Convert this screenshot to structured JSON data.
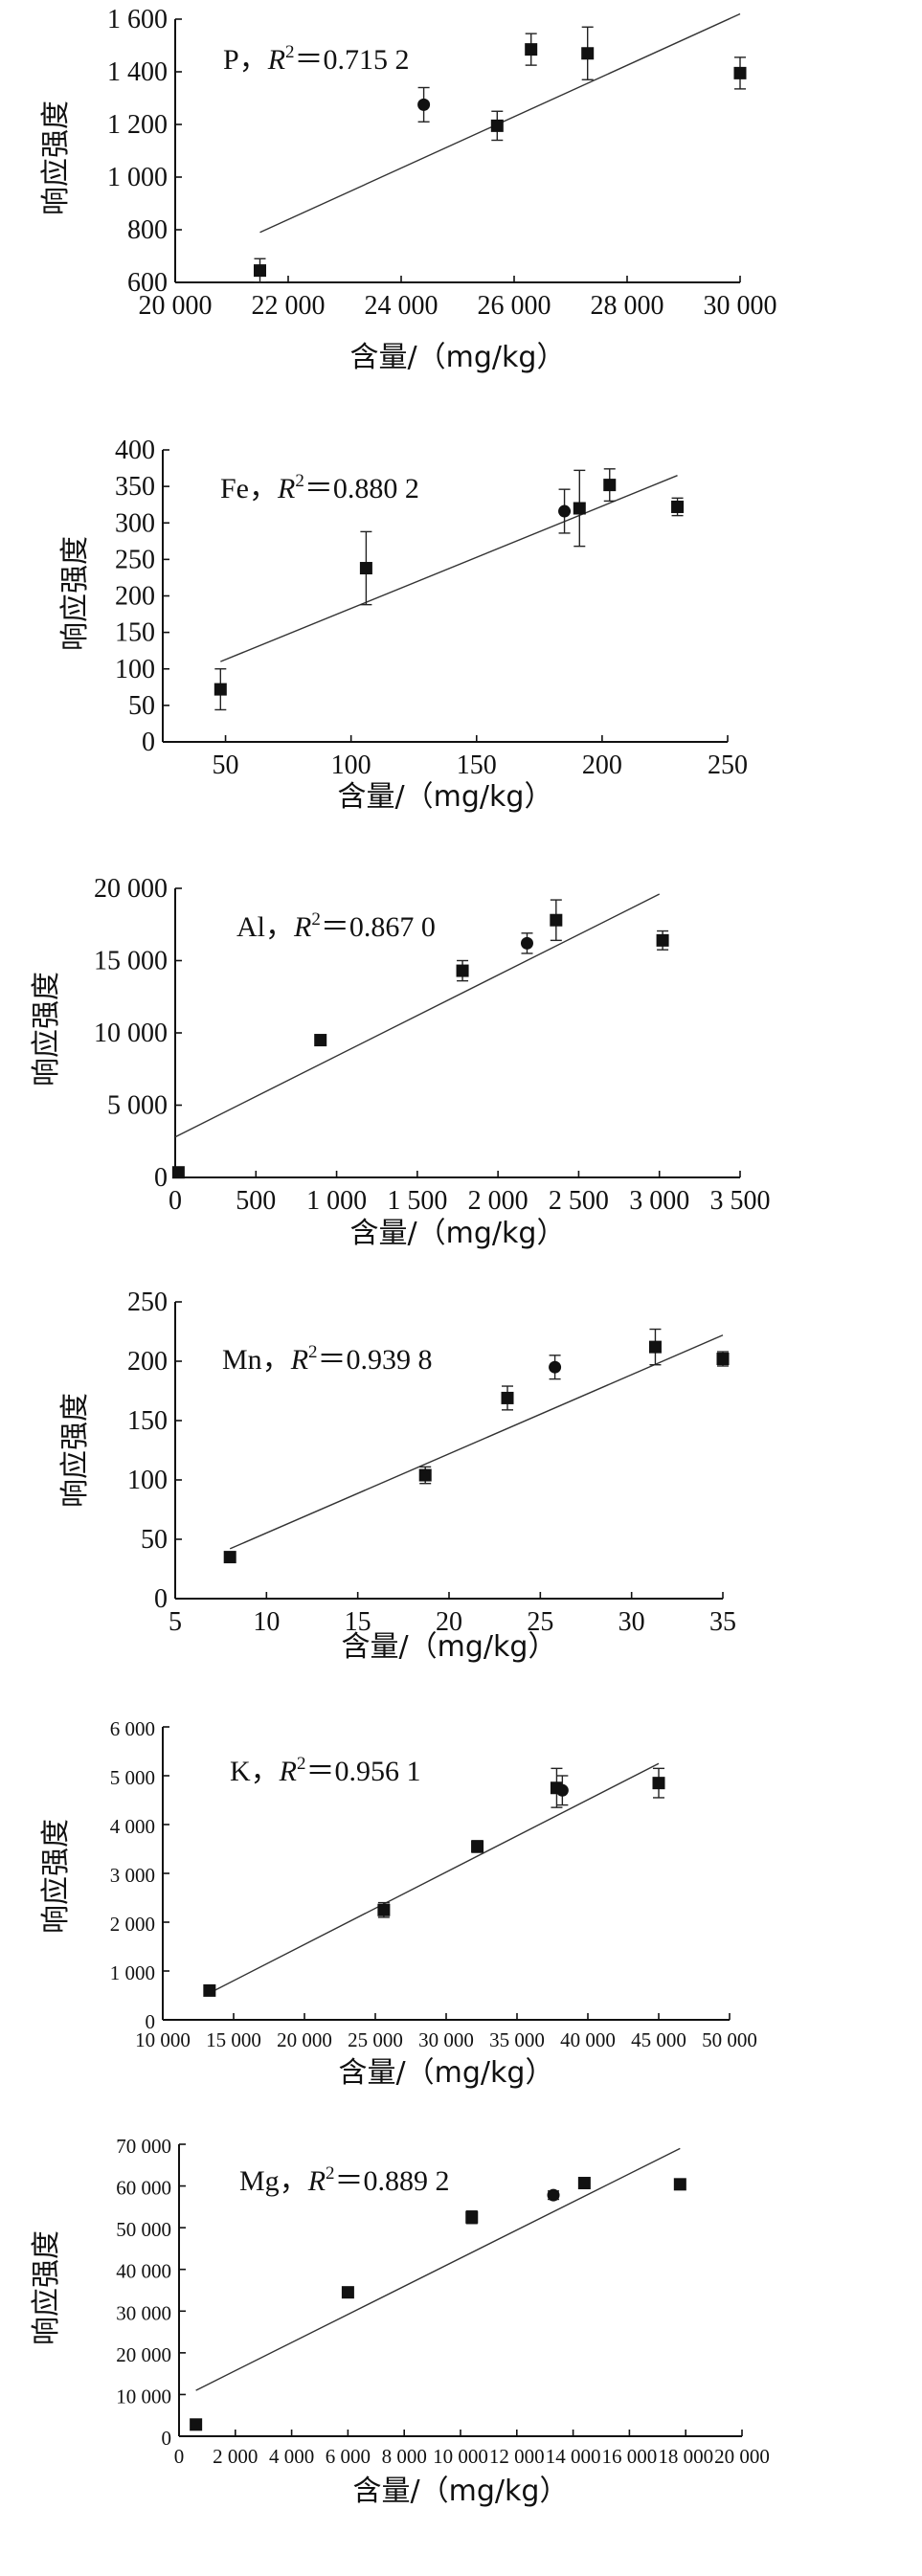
{
  "chart_data": [
    {
      "type": "scatter",
      "ylabel": "响应强度",
      "xlabel": "含量/（mg/kg）",
      "annotation": {
        "element": "P",
        "r2": "0.715 2"
      },
      "xlim": [
        20000,
        30000
      ],
      "ylim": [
        600,
        1600
      ],
      "xticks": [
        20000,
        22000,
        24000,
        26000,
        28000,
        30000
      ],
      "xtick_labels": [
        "20 000",
        "22 000",
        "24 000",
        "26 000",
        "28 000",
        "30 000"
      ],
      "yticks": [
        600,
        800,
        1000,
        1200,
        1400,
        1600
      ],
      "ytick_labels": [
        "600",
        "800",
        "1 000",
        "1 200",
        "1 400",
        "1 600"
      ],
      "fit": {
        "x": [
          21500,
          30000
        ],
        "y": [
          790,
          1620
        ]
      },
      "points": [
        {
          "x": 21500,
          "y": 645,
          "err": 45,
          "marker": "square"
        },
        {
          "x": 24400,
          "y": 1275,
          "err": 65,
          "marker": "circle"
        },
        {
          "x": 25700,
          "y": 1195,
          "err": 55,
          "marker": "square"
        },
        {
          "x": 26300,
          "y": 1485,
          "err": 60,
          "marker": "square"
        },
        {
          "x": 27300,
          "y": 1470,
          "err": 100,
          "marker": "square"
        },
        {
          "x": 30000,
          "y": 1395,
          "err": 60,
          "marker": "square"
        }
      ]
    },
    {
      "type": "scatter",
      "ylabel": "响应强度",
      "xlabel": "含量/（mg/kg）",
      "annotation": {
        "element": "Fe",
        "r2": "0.880 2"
      },
      "xlim": [
        25,
        250
      ],
      "ylim": [
        0,
        400
      ],
      "xticks": [
        50,
        100,
        150,
        200,
        250
      ],
      "xtick_labels": [
        "50",
        "100",
        "150",
        "200",
        "250"
      ],
      "yticks": [
        0,
        50,
        100,
        150,
        200,
        250,
        300,
        350,
        400
      ],
      "ytick_labels": [
        "0",
        "50",
        "100",
        "150",
        "200",
        "250",
        "300",
        "350",
        "400"
      ],
      "fit": {
        "x": [
          48,
          230
        ],
        "y": [
          110,
          365
        ]
      },
      "points": [
        {
          "x": 48,
          "y": 72,
          "err": 28,
          "marker": "square"
        },
        {
          "x": 106,
          "y": 238,
          "err": 50,
          "marker": "square"
        },
        {
          "x": 185,
          "y": 316,
          "err": 30,
          "marker": "circle"
        },
        {
          "x": 191,
          "y": 320,
          "err": 52,
          "marker": "square"
        },
        {
          "x": 203,
          "y": 352,
          "err": 22,
          "marker": "square"
        },
        {
          "x": 230,
          "y": 322,
          "err": 12,
          "marker": "square"
        }
      ]
    },
    {
      "type": "scatter",
      "ylabel": "响应强度",
      "xlabel": "含量/（mg/kg）",
      "annotation": {
        "element": "Al",
        "r2": "0.867 0"
      },
      "xlim": [
        0,
        3500
      ],
      "ylim": [
        0,
        20000
      ],
      "xticks": [
        0,
        500,
        1000,
        1500,
        2000,
        2500,
        3000,
        3500
      ],
      "xtick_labels": [
        "0",
        "500",
        "1 000",
        "1 500",
        "2 000",
        "2 500",
        "3 000",
        "3 500"
      ],
      "yticks": [
        0,
        5000,
        10000,
        15000,
        20000
      ],
      "ytick_labels": [
        "0",
        "5 000",
        "10 000",
        "15 000",
        "20 000"
      ],
      "fit": {
        "x": [
          0,
          3000
        ],
        "y": [
          2800,
          19600
        ]
      },
      "points": [
        {
          "x": 20,
          "y": 350,
          "err": 0,
          "marker": "square"
        },
        {
          "x": 900,
          "y": 9500,
          "err": 350,
          "marker": "square"
        },
        {
          "x": 1780,
          "y": 14300,
          "err": 700,
          "marker": "square"
        },
        {
          "x": 2180,
          "y": 16200,
          "err": 700,
          "marker": "circle"
        },
        {
          "x": 2360,
          "y": 17800,
          "err": 1400,
          "marker": "square"
        },
        {
          "x": 3020,
          "y": 16400,
          "err": 650,
          "marker": "square"
        }
      ]
    },
    {
      "type": "scatter",
      "ylabel": "响应强度",
      "xlabel": "含量/（mg/kg）",
      "annotation": {
        "element": "Mn",
        "r2": "0.939 8"
      },
      "xlim": [
        5,
        35
      ],
      "ylim": [
        0,
        250
      ],
      "xticks": [
        5,
        10,
        15,
        20,
        25,
        30,
        35
      ],
      "xtick_labels": [
        "5",
        "10",
        "15",
        "20",
        "25",
        "30",
        "35"
      ],
      "yticks": [
        0,
        50,
        100,
        150,
        200,
        250
      ],
      "ytick_labels": [
        "0",
        "50",
        "100",
        "150",
        "200",
        "250"
      ],
      "fit": {
        "x": [
          8,
          35
        ],
        "y": [
          42,
          222
        ]
      },
      "points": [
        {
          "x": 8,
          "y": 35,
          "err": 0,
          "marker": "square"
        },
        {
          "x": 18.7,
          "y": 104,
          "err": 7,
          "marker": "square"
        },
        {
          "x": 23.2,
          "y": 169,
          "err": 10,
          "marker": "square"
        },
        {
          "x": 25.8,
          "y": 195,
          "err": 10,
          "marker": "circle"
        },
        {
          "x": 31.3,
          "y": 212,
          "err": 15,
          "marker": "square"
        },
        {
          "x": 35,
          "y": 202,
          "err": 6,
          "marker": "square"
        }
      ]
    },
    {
      "type": "scatter",
      "ylabel": "响应强度",
      "xlabel": "含量/（mg/kg）",
      "annotation": {
        "element": "K",
        "r2": "0.956 1"
      },
      "xlim": [
        10000,
        50000
      ],
      "ylim": [
        0,
        6000
      ],
      "xticks": [
        10000,
        15000,
        20000,
        25000,
        30000,
        35000,
        40000,
        45000,
        50000
      ],
      "xtick_labels": [
        "10 000",
        "15 000",
        "20 000",
        "25 000",
        "30 000",
        "35 000",
        "40 000",
        "45 000",
        "50 000"
      ],
      "yticks": [
        0,
        1000,
        2000,
        3000,
        4000,
        5000,
        6000
      ],
      "ytick_labels": [
        "0",
        "1 000",
        "2 000",
        "3 000",
        "4 000",
        "5 000",
        "6 000"
      ],
      "fit": {
        "x": [
          13300,
          45000
        ],
        "y": [
          550,
          5250
        ]
      },
      "points": [
        {
          "x": 13300,
          "y": 600,
          "err": 0,
          "marker": "square"
        },
        {
          "x": 25600,
          "y": 2250,
          "err": 150,
          "marker": "square"
        },
        {
          "x": 32200,
          "y": 3550,
          "err": 120,
          "marker": "square"
        },
        {
          "x": 37800,
          "y": 4750,
          "err": 400,
          "marker": "square"
        },
        {
          "x": 38200,
          "y": 4700,
          "err": 300,
          "marker": "circle"
        },
        {
          "x": 45000,
          "y": 4850,
          "err": 300,
          "marker": "square"
        }
      ]
    },
    {
      "type": "scatter",
      "ylabel": "响应强度",
      "xlabel": "含量/（mg/kg）",
      "annotation": {
        "element": "Mg",
        "r2": "0.889 2"
      },
      "xlim": [
        0,
        20000
      ],
      "ylim": [
        0,
        70000
      ],
      "xticks": [
        0,
        2000,
        4000,
        6000,
        8000,
        10000,
        12000,
        14000,
        16000,
        18000,
        20000
      ],
      "xtick_labels": [
        "0",
        "2 000",
        "4 000",
        "6 000",
        "8 000",
        "10 000",
        "12 000",
        "14 000",
        "16 000",
        "18 000",
        "20 000"
      ],
      "yticks": [
        0,
        10000,
        20000,
        30000,
        40000,
        50000,
        60000,
        70000
      ],
      "ytick_labels": [
        "0",
        "10 000",
        "20 000",
        "30 000",
        "40 000",
        "50 000",
        "60 000",
        "70 000"
      ],
      "fit": {
        "x": [
          600,
          17800
        ],
        "y": [
          11000,
          69000
        ]
      },
      "points": [
        {
          "x": 600,
          "y": 2800,
          "err": 0,
          "marker": "square"
        },
        {
          "x": 6000,
          "y": 34500,
          "err": 0,
          "marker": "square"
        },
        {
          "x": 10400,
          "y": 52500,
          "err": 1500,
          "marker": "square"
        },
        {
          "x": 13300,
          "y": 57800,
          "err": 1000,
          "marker": "circle"
        },
        {
          "x": 14400,
          "y": 60700,
          "err": 1000,
          "marker": "square"
        },
        {
          "x": 17800,
          "y": 60400,
          "err": 0,
          "marker": "square"
        }
      ]
    }
  ]
}
